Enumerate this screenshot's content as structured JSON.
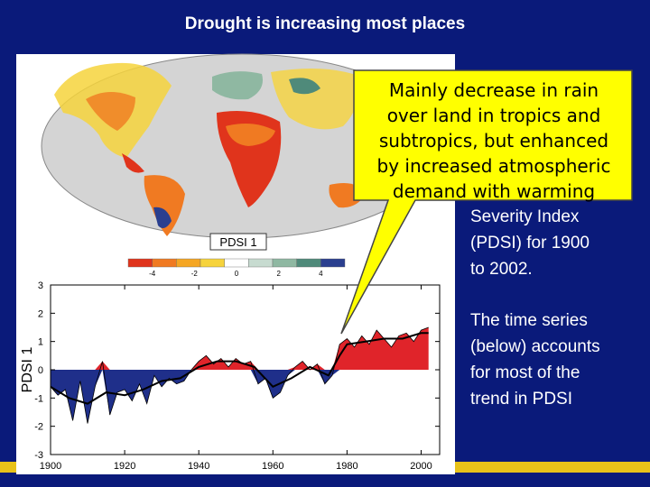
{
  "slide": {
    "title": "Drought is increasing most places",
    "callout_lines": [
      "Mainly decrease in rain",
      "over land in tropics and",
      "subtropics, but enhanced",
      "by increased atmospheric",
      "demand with warming"
    ],
    "side_text_1_lines": [
      "Severity Index",
      "(PDSI) for 1900",
      "to 2002."
    ],
    "side_text_2_lines": [
      "The time series",
      "(below) accounts",
      "for most of the",
      "trend in PDSI"
    ]
  },
  "map": {
    "label": "PDSI 1",
    "colorbar_ticks": [
      "-4",
      "-2",
      "0",
      "2",
      "4"
    ],
    "colorbar_colors": [
      "#e0341c",
      "#f07a22",
      "#f5a623",
      "#f6d33c",
      "#ffffff",
      "#c7dbd0",
      "#8fb8a2",
      "#4f8a7a",
      "#2a3f8f"
    ]
  },
  "chart_data": {
    "type": "area",
    "ylabel": "PDSI 1",
    "xlim": [
      1900,
      2005
    ],
    "ylim": [
      -3,
      3
    ],
    "xticks": [
      "1900",
      "1920",
      "1940",
      "1960",
      "1980",
      "2000"
    ],
    "yticks": [
      "3",
      "2",
      "1",
      "0",
      "-1",
      "-2",
      "-3"
    ],
    "positive_color": "#e0242a",
    "negative_color": "#1f2f8a",
    "annual": {
      "x": [
        1900,
        1902,
        1904,
        1906,
        1908,
        1910,
        1912,
        1914,
        1916,
        1918,
        1920,
        1922,
        1924,
        1926,
        1928,
        1930,
        1932,
        1934,
        1936,
        1938,
        1940,
        1942,
        1944,
        1946,
        1948,
        1950,
        1952,
        1954,
        1956,
        1958,
        1960,
        1962,
        1964,
        1966,
        1968,
        1970,
        1972,
        1974,
        1976,
        1978,
        1980,
        1982,
        1984,
        1986,
        1988,
        1990,
        1992,
        1994,
        1996,
        1998,
        2000,
        2002
      ],
      "y": [
        -0.6,
        -0.9,
        -0.7,
        -1.8,
        -0.4,
        -1.9,
        -0.6,
        0.3,
        -1.6,
        -0.8,
        -0.7,
        -1.1,
        -0.5,
        -1.2,
        -0.2,
        -0.6,
        -0.3,
        -0.5,
        -0.4,
        0.0,
        0.3,
        0.5,
        0.2,
        0.4,
        0.1,
        0.4,
        0.2,
        0.3,
        -0.5,
        -0.3,
        -1.0,
        -0.8,
        -0.2,
        0.1,
        0.3,
        0.0,
        0.2,
        -0.5,
        -0.2,
        0.9,
        1.1,
        0.8,
        1.2,
        0.9,
        1.4,
        1.1,
        0.8,
        1.2,
        1.3,
        1.0,
        1.4,
        1.5
      ]
    },
    "smoothed": {
      "x": [
        1900,
        1905,
        1910,
        1915,
        1920,
        1925,
        1930,
        1935,
        1940,
        1945,
        1950,
        1955,
        1960,
        1965,
        1970,
        1975,
        1978,
        1980,
        1985,
        1990,
        1995,
        2000,
        2002
      ],
      "y": [
        -0.6,
        -1.0,
        -1.2,
        -0.8,
        -0.9,
        -0.7,
        -0.4,
        -0.3,
        0.1,
        0.3,
        0.3,
        0.1,
        -0.6,
        -0.3,
        0.1,
        -0.2,
        0.5,
        0.9,
        1.0,
        1.1,
        1.1,
        1.3,
        1.3
      ]
    }
  }
}
